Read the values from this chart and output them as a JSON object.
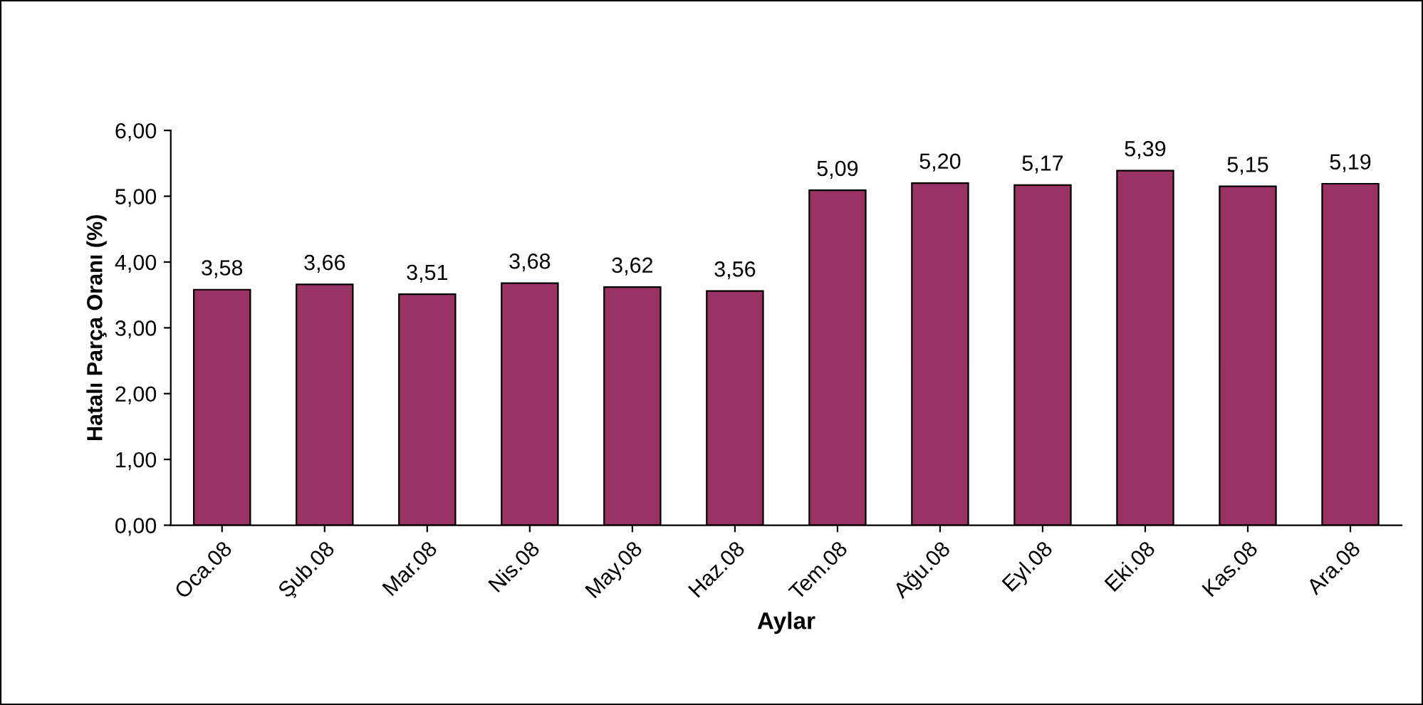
{
  "chart_data": {
    "type": "bar",
    "xlabel": "Aylar",
    "ylabel": "Hatalı Parça Oranı (%)",
    "categories": [
      "Oca.08",
      "Şub.08",
      "Mar.08",
      "Nis.08",
      "May.08",
      "Haz.08",
      "Tem.08",
      "Ağu.08",
      "Eyl.08",
      "Eki.08",
      "Kas.08",
      "Ara.08"
    ],
    "values": [
      3.58,
      3.66,
      3.51,
      3.68,
      3.62,
      3.56,
      5.09,
      5.2,
      5.17,
      5.39,
      5.15,
      5.19
    ],
    "value_labels": [
      "3,58",
      "3,66",
      "3,51",
      "3,68",
      "3,62",
      "3,56",
      "5,09",
      "5,20",
      "5,17",
      "5,39",
      "5,15",
      "5,19"
    ],
    "color": "#993366",
    "ylim": [
      0,
      6
    ],
    "yticks": [
      {
        "value": 0,
        "label": "0,00"
      },
      {
        "value": 1,
        "label": "1,00"
      },
      {
        "value": 2,
        "label": "2,00"
      },
      {
        "value": 3,
        "label": "3,00"
      },
      {
        "value": 4,
        "label": "4,00"
      },
      {
        "value": 5,
        "label": "5,00"
      },
      {
        "value": 6,
        "label": "6,00"
      }
    ],
    "grid": false,
    "legend": false
  }
}
